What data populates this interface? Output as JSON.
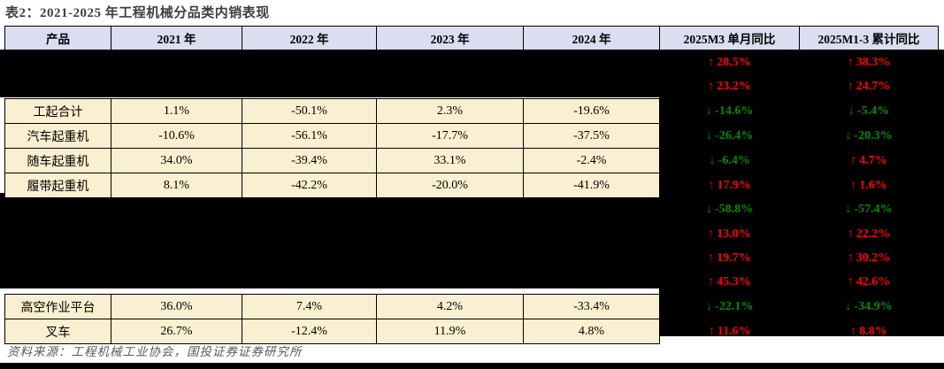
{
  "title": "表2：2021-2025 年工程机械分品类内销表现",
  "source": "资料来源：工程机械工业协会，国投证券证券研究所",
  "colors": {
    "red": "#ff0000",
    "green": "#008b00",
    "header_bg": "#dadef0",
    "cell_bg": "#fbefd1",
    "dark_bg": "#000000",
    "title_color": "#3f3f3f",
    "source_color": "#595959"
  },
  "table": {
    "headers": [
      "产品",
      "2021 年",
      "2022 年",
      "2023 年",
      "2024 年",
      "2025M3 单月同比",
      "2025M1-3 累计同比"
    ],
    "rows": [
      {
        "dark": true,
        "cells": [
          "",
          "",
          "",
          "",
          ""
        ],
        "m3": {
          "arrow": "↑",
          "value": "28.5%",
          "color": "red"
        },
        "m13": {
          "arrow": "↑",
          "value": "38.3%",
          "color": "red"
        }
      },
      {
        "dark": true,
        "cells": [
          "",
          "",
          "",
          "",
          ""
        ],
        "m3": {
          "arrow": "↑",
          "value": "23.2%",
          "color": "red"
        },
        "m13": {
          "arrow": "↑",
          "value": "24.7%",
          "color": "red"
        }
      },
      {
        "dark": false,
        "cells": [
          "工起合计",
          "1.1%",
          "-50.1%",
          "2.3%",
          "-19.6%"
        ],
        "m3": {
          "arrow": "↓",
          "value": "-14.6%",
          "color": "green"
        },
        "m13": {
          "arrow": "↓",
          "value": "-5.4%",
          "color": "green"
        }
      },
      {
        "dark": false,
        "cells": [
          "汽车起重机",
          "-10.6%",
          "-56.1%",
          "-17.7%",
          "-37.5%"
        ],
        "m3": {
          "arrow": "↓",
          "value": "-26.4%",
          "color": "green"
        },
        "m13": {
          "arrow": "↓",
          "value": "-20.3%",
          "color": "green"
        }
      },
      {
        "dark": false,
        "cells": [
          "随车起重机",
          "34.0%",
          "-39.4%",
          "33.1%",
          "-2.4%"
        ],
        "m3": {
          "arrow": "↓",
          "value": "-6.4%",
          "color": "green"
        },
        "m13": {
          "arrow": "↑",
          "value": "4.7%",
          "color": "red"
        }
      },
      {
        "dark": false,
        "cells": [
          "履带起重机",
          "8.1%",
          "-42.2%",
          "-20.0%",
          "-41.9%"
        ],
        "m3": {
          "arrow": "↑",
          "value": "17.9%",
          "color": "red"
        },
        "m13": {
          "arrow": "↑",
          "value": "1.6%",
          "color": "red"
        }
      },
      {
        "dark": true,
        "cells": [
          "",
          "",
          "",
          "",
          ""
        ],
        "m3": {
          "arrow": "↓",
          "value": "-58.8%",
          "color": "green"
        },
        "m13": {
          "arrow": "↓",
          "value": "-57.4%",
          "color": "green"
        }
      },
      {
        "dark": true,
        "cells": [
          "",
          "",
          "",
          "",
          ""
        ],
        "m3": {
          "arrow": "↑",
          "value": "13.0%",
          "color": "red"
        },
        "m13": {
          "arrow": "↑",
          "value": "22.2%",
          "color": "red"
        }
      },
      {
        "dark": true,
        "cells": [
          "",
          "",
          "",
          "",
          ""
        ],
        "m3": {
          "arrow": "↑",
          "value": "19.7%",
          "color": "red"
        },
        "m13": {
          "arrow": "↑",
          "value": "30.2%",
          "color": "red"
        }
      },
      {
        "dark": true,
        "cells": [
          "",
          "",
          "",
          "",
          ""
        ],
        "m3": {
          "arrow": "↑",
          "value": "45.3%",
          "color": "red"
        },
        "m13": {
          "arrow": "↑",
          "value": "42.6%",
          "color": "red"
        }
      },
      {
        "dark": false,
        "cells": [
          "高空作业平台",
          "36.0%",
          "7.4%",
          "4.2%",
          "-33.4%"
        ],
        "m3": {
          "arrow": "↓",
          "value": "-22.1%",
          "color": "green"
        },
        "m13": {
          "arrow": "↓",
          "value": "-34.9%",
          "color": "green"
        }
      },
      {
        "dark": false,
        "cells": [
          "叉车",
          "26.7%",
          "-12.4%",
          "11.9%",
          "4.8%"
        ],
        "m3": {
          "arrow": "↑",
          "value": "11.6%",
          "color": "red"
        },
        "m13": {
          "arrow": "↑",
          "value": "8.8%",
          "color": "red"
        }
      }
    ]
  }
}
